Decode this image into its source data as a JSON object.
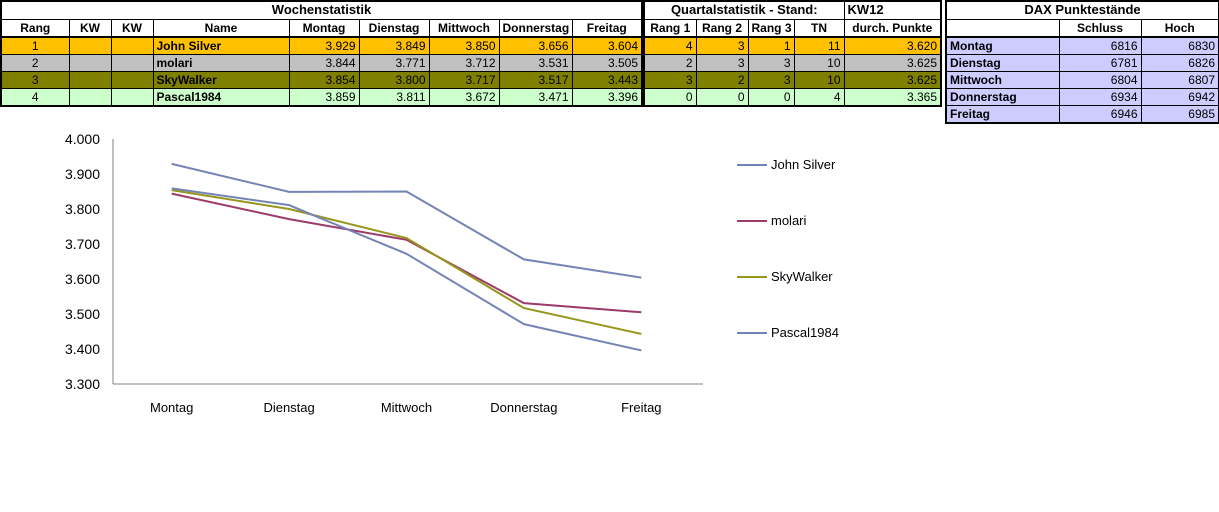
{
  "app": {
    "background": "#ffffff"
  },
  "tables": {
    "wochenstatistik": {
      "title": "Wochenstatistik",
      "columns": [
        "Rang",
        "KW",
        "KW",
        "Name",
        "Montag",
        "Dienstag",
        "Mittwoch",
        "Donnerstag",
        "Freitag"
      ],
      "rows": [
        {
          "rang": "1",
          "kw1": "",
          "kw2": "",
          "name": "John Silver",
          "values": [
            "3.929",
            "3.849",
            "3.850",
            "3.656",
            "3.604"
          ],
          "row_color": "#FFC000"
        },
        {
          "rang": "2",
          "kw1": "",
          "kw2": "",
          "name": "molari",
          "values": [
            "3.844",
            "3.771",
            "3.712",
            "3.531",
            "3.505"
          ],
          "row_color": "#C0C0C0"
        },
        {
          "rang": "3",
          "kw1": "",
          "kw2": "",
          "name": "SkyWalker",
          "values": [
            "3.854",
            "3.800",
            "3.717",
            "3.517",
            "3.443"
          ],
          "row_color": "#808000"
        },
        {
          "rang": "4",
          "kw1": "",
          "kw2": "",
          "name": "Pascal1984",
          "values": [
            "3.859",
            "3.811",
            "3.672",
            "3.471",
            "3.396"
          ],
          "row_color": "#CCFFCC"
        }
      ]
    },
    "quartalstatistik": {
      "title_left": "Quartalstatistik - Stand:",
      "title_right": "KW12",
      "columns": [
        "Rang 1",
        "Rang 2",
        "Rang 3",
        "TN",
        "durch. Punkte"
      ],
      "rows": [
        {
          "values": [
            "4",
            "3",
            "1",
            "11",
            "3.620"
          ],
          "row_color": "#FFC000"
        },
        {
          "values": [
            "2",
            "3",
            "3",
            "10",
            "3.625"
          ],
          "row_color": "#C0C0C0"
        },
        {
          "values": [
            "3",
            "2",
            "3",
            "10",
            "3.625"
          ],
          "row_color": "#808000"
        },
        {
          "values": [
            "0",
            "0",
            "0",
            "4",
            "3.365"
          ],
          "row_color": "#CCFFCC"
        }
      ]
    },
    "dax": {
      "title": "DAX Punktestände",
      "columns": [
        "",
        "Schluss",
        "Hoch"
      ],
      "row_color": "#CCCCFF",
      "rows": [
        {
          "day": "Montag",
          "schluss": "6816",
          "hoch": "6830"
        },
        {
          "day": "Dienstag",
          "schluss": "6781",
          "hoch": "6826"
        },
        {
          "day": "Mittwoch",
          "schluss": "6804",
          "hoch": "6807"
        },
        {
          "day": "Donnerstag",
          "schluss": "6934",
          "hoch": "6942"
        },
        {
          "day": "Freitag",
          "schluss": "6946",
          "hoch": "6985"
        }
      ]
    }
  },
  "chart_data": {
    "type": "line",
    "categories": [
      "Montag",
      "Dienstag",
      "Mittwoch",
      "Donnerstag",
      "Freitag"
    ],
    "series": [
      {
        "name": "John Silver",
        "color": "#7583b5",
        "values": [
          3929,
          3849,
          3850,
          3656,
          3604
        ]
      },
      {
        "name": "molari",
        "color": "#9c3a6a",
        "values": [
          3844,
          3771,
          3712,
          3531,
          3505
        ]
      },
      {
        "name": "SkyWalker",
        "color": "#96961c",
        "values": [
          3854,
          3800,
          3717,
          3517,
          3443
        ]
      },
      {
        "name": "Pascal1984",
        "color": "#7583b5",
        "values": [
          3859,
          3811,
          3672,
          3471,
          3396
        ]
      }
    ],
    "ylim": [
      3300,
      4000
    ],
    "ytick_step": 100,
    "ytick_labels": [
      "3.300",
      "3.400",
      "3.500",
      "3.600",
      "3.700",
      "3.800",
      "3.900",
      "4.000"
    ],
    "xlabel": "",
    "ylabel": "",
    "title": "",
    "grid": false,
    "legend_position": "right",
    "axis_color": "#808080"
  }
}
